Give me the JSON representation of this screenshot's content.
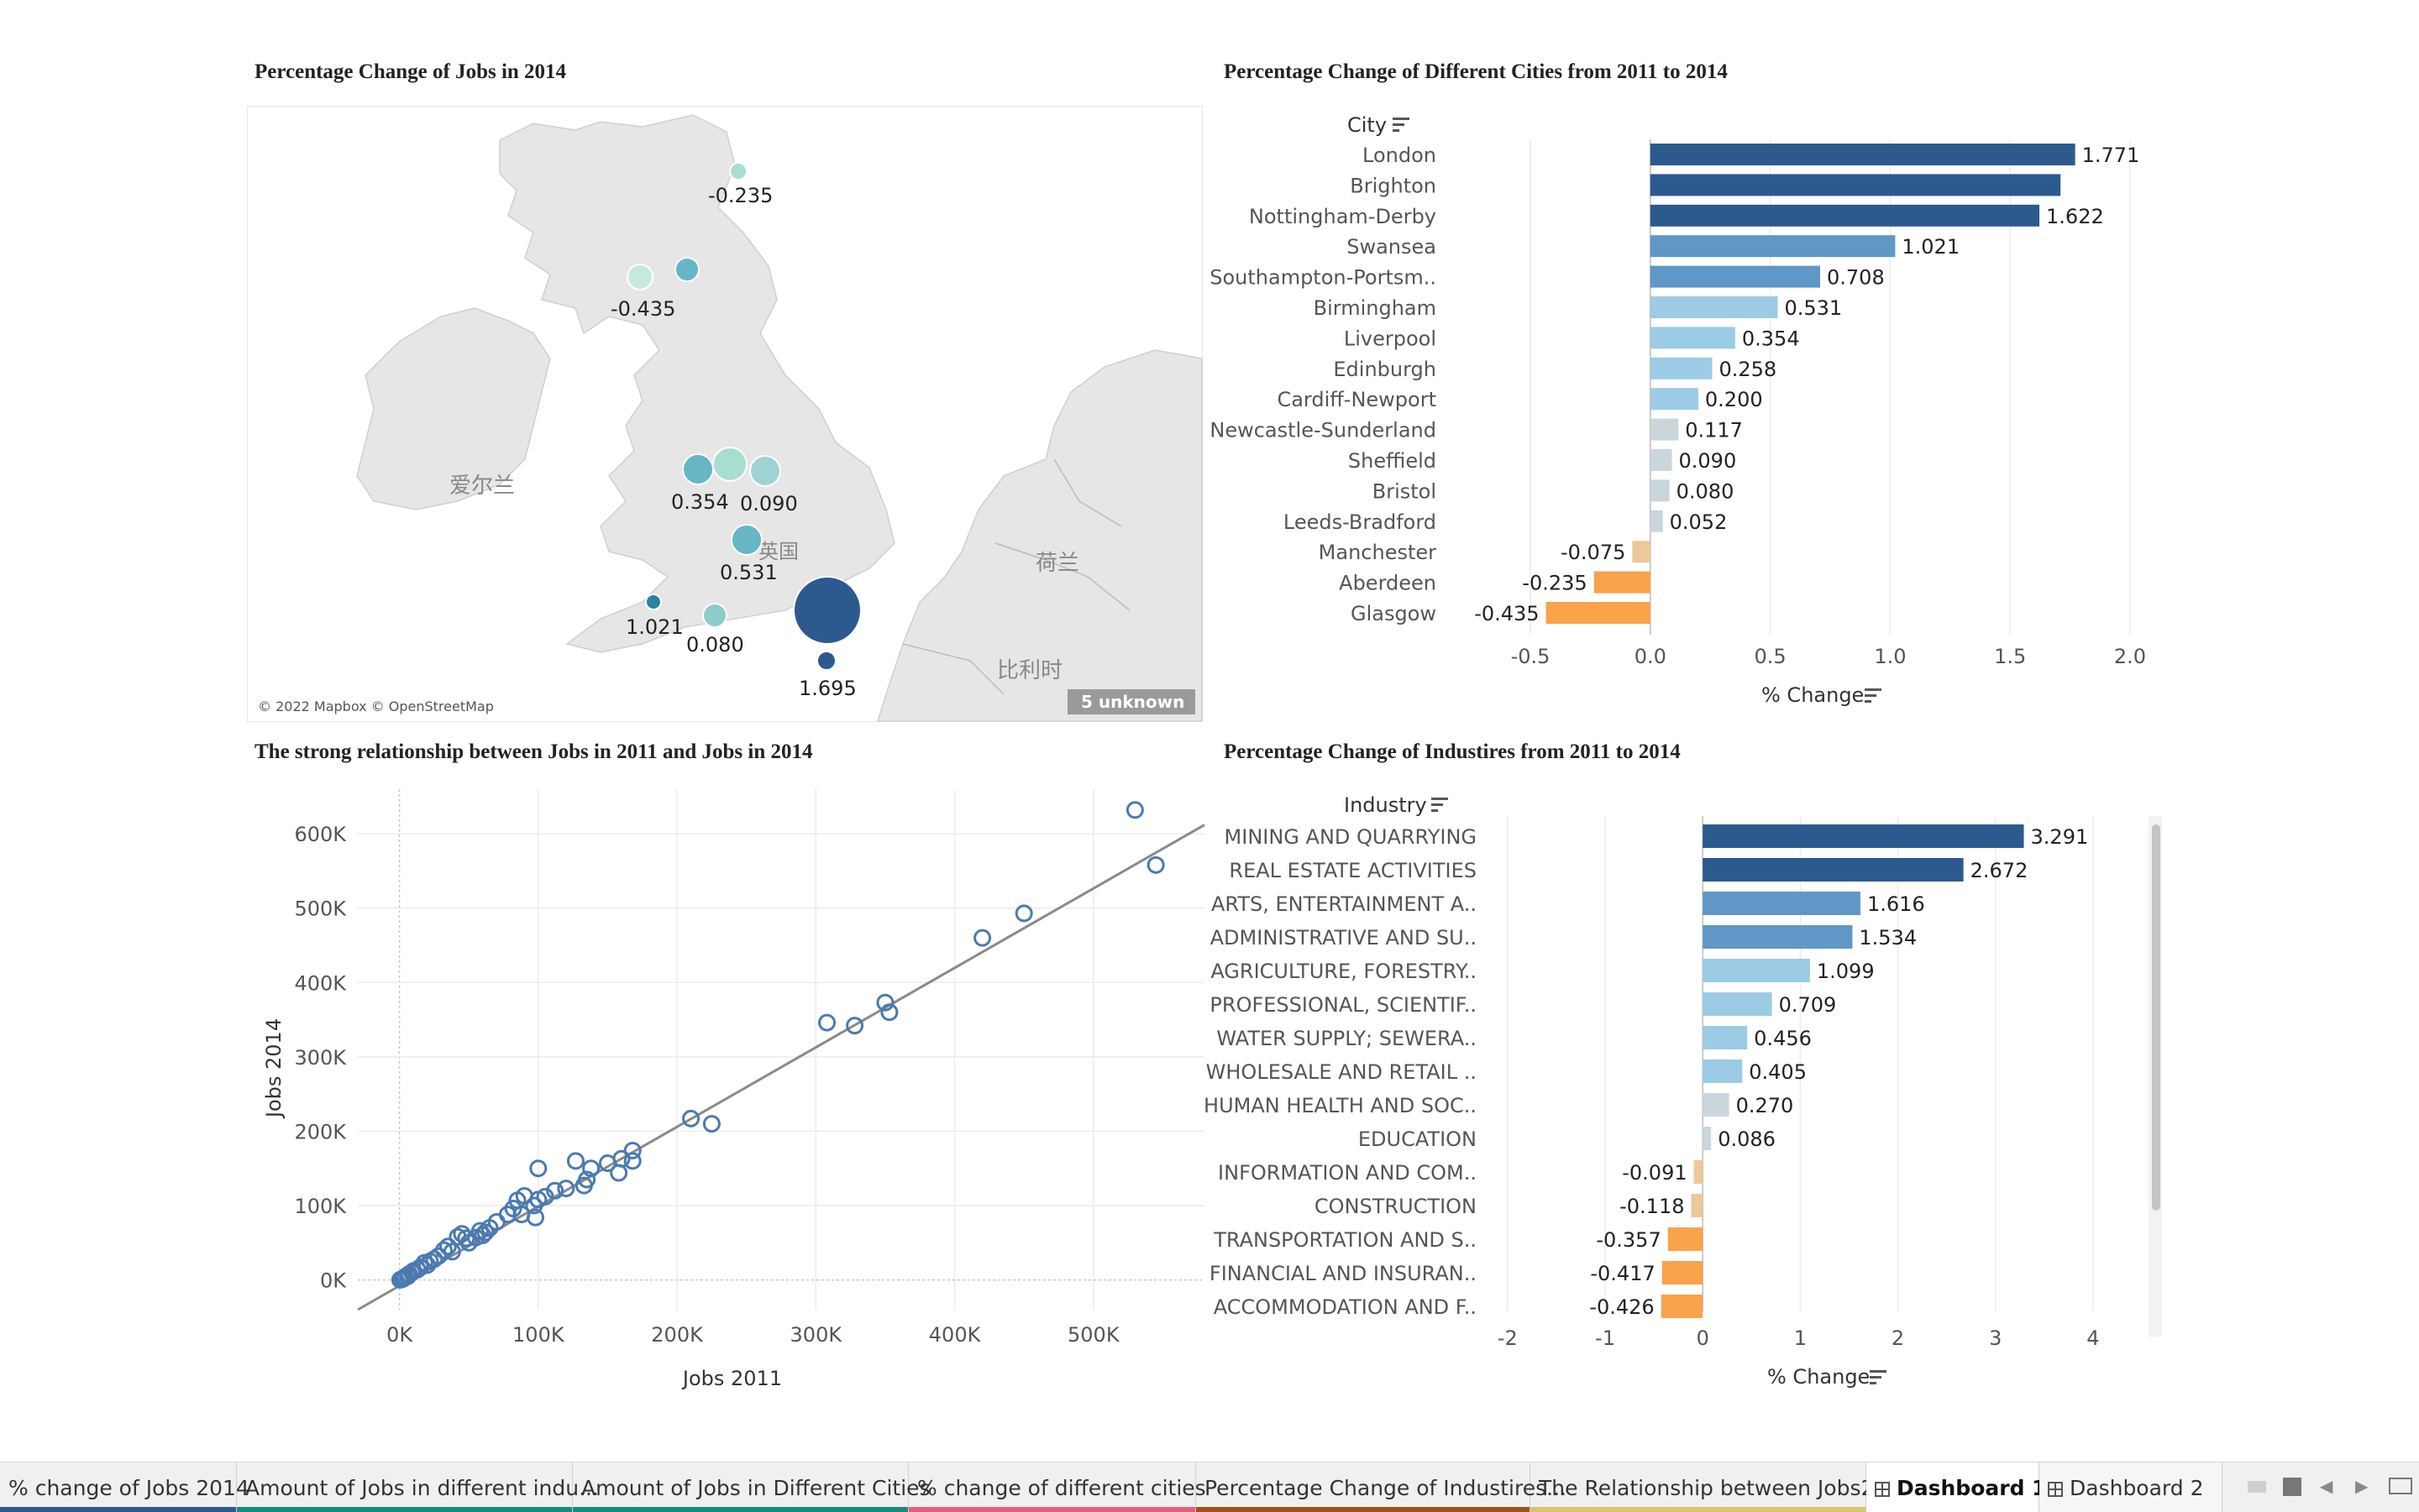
{
  "map_panel": {
    "title": "Percentage Change of Jobs in 2014",
    "attribution": "© 2022 Mapbox © OpenStreetMap",
    "unknown_badge": "5 unknown",
    "country_labels": {
      "ireland": "爱尔兰",
      "uk": "英国",
      "netherlands": "荷兰",
      "belgium": "比利时"
    },
    "marker_labels": [
      "-0.235",
      "-0.435",
      "0.354",
      "0.090",
      "0.531",
      "1.021",
      "0.080",
      "1.695"
    ],
    "colors": {
      "sea": "#ffffff",
      "land": "#e8e8e8",
      "low": "#a8ddd2",
      "mid": "#66b6c6",
      "high": "#2c5a8f"
    }
  },
  "city_panel": {
    "title": "Percentage Change of Different Cities from 2011 to 2014",
    "row_header": "City",
    "axis_label": "% Change",
    "chart_data": {
      "type": "bar",
      "orientation": "horizontal",
      "categories": [
        "London",
        "Brighton",
        "Nottingham-Derby",
        "Swansea",
        "Southampton-Portsm..",
        "Birmingham",
        "Liverpool",
        "Edinburgh",
        "Cardiff-Newport",
        "Newcastle-Sunderland",
        "Sheffield",
        "Bristol",
        "Leeds-Bradford",
        "Manchester",
        "Aberdeen",
        "Glasgow"
      ],
      "values": [
        1.771,
        1.71,
        1.622,
        1.021,
        0.708,
        0.531,
        0.354,
        0.258,
        0.2,
        0.117,
        0.09,
        0.08,
        0.052,
        -0.075,
        -0.235,
        -0.435
      ],
      "labels": [
        "1.771",
        "",
        "1.622",
        "1.021",
        "0.708",
        "0.531",
        "0.354",
        "0.258",
        "0.200",
        "0.117",
        "0.090",
        "0.080",
        "0.052",
        "-0.075",
        "-0.235",
        "-0.435"
      ],
      "xlim": [
        -0.5,
        2.0
      ],
      "ticks": [
        "-0.5",
        "0.0",
        "0.5",
        "1.0",
        "1.5",
        "2.0"
      ],
      "xlabel": "% Change",
      "grid": true
    }
  },
  "scatter_panel": {
    "title": "The strong relationship between Jobs in 2011 and Jobs in 2014",
    "chart_data": {
      "type": "scatter",
      "xlabel": "Jobs 2011",
      "ylabel": "Jobs 2014",
      "xlim": [
        -30000,
        580000
      ],
      "ylim": [
        -40000,
        660000
      ],
      "xticks": [
        0,
        100000,
        200000,
        300000,
        400000,
        500000
      ],
      "xtick_labels": [
        "0K",
        "100K",
        "200K",
        "300K",
        "400K",
        "500K"
      ],
      "yticks": [
        0,
        100000,
        200000,
        300000,
        400000,
        500000,
        600000
      ],
      "ytick_labels": [
        "0K",
        "100K",
        "200K",
        "300K",
        "400K",
        "500K",
        "600K"
      ],
      "trend_line": {
        "x": [
          -30000,
          580000
        ],
        "y": [
          -40000,
          612000
        ]
      },
      "points": [
        [
          530000,
          632000
        ],
        [
          545000,
          558000
        ],
        [
          450000,
          493000
        ],
        [
          420000,
          460000
        ],
        [
          350000,
          373000
        ],
        [
          353000,
          360000
        ],
        [
          308000,
          346000
        ],
        [
          328000,
          342000
        ],
        [
          210000,
          217000
        ],
        [
          225000,
          210000
        ],
        [
          100000,
          150000
        ],
        [
          127000,
          160000
        ],
        [
          160000,
          163000
        ],
        [
          168000,
          174000
        ],
        [
          168000,
          160000
        ],
        [
          150000,
          157000
        ],
        [
          138000,
          150000
        ],
        [
          135000,
          135000
        ],
        [
          133000,
          127000
        ],
        [
          158000,
          144000
        ],
        [
          120000,
          123000
        ],
        [
          112000,
          120000
        ],
        [
          105000,
          112000
        ],
        [
          100000,
          108000
        ],
        [
          97000,
          100000
        ],
        [
          90000,
          113000
        ],
        [
          85000,
          107000
        ],
        [
          82000,
          96000
        ],
        [
          78000,
          88000
        ],
        [
          88000,
          88000
        ],
        [
          98000,
          84000
        ],
        [
          65000,
          70000
        ],
        [
          58000,
          66000
        ],
        [
          60000,
          60000
        ],
        [
          48000,
          56000
        ],
        [
          45000,
          62000
        ],
        [
          42000,
          58000
        ],
        [
          50000,
          50000
        ],
        [
          35000,
          45000
        ],
        [
          32000,
          40000
        ],
        [
          38000,
          38000
        ],
        [
          28000,
          32000
        ],
        [
          25000,
          28000
        ],
        [
          22000,
          25000
        ],
        [
          20000,
          20000
        ],
        [
          18000,
          23000
        ],
        [
          15000,
          17000
        ],
        [
          13000,
          14000
        ],
        [
          10000,
          12000
        ],
        [
          9000,
          10000
        ],
        [
          7000,
          8000
        ],
        [
          6000,
          5000
        ],
        [
          4000,
          4000
        ],
        [
          3000,
          2000
        ],
        [
          2000,
          1000
        ],
        [
          1000,
          500
        ],
        [
          500,
          200
        ],
        [
          70000,
          78000
        ],
        [
          55000,
          57000
        ],
        [
          62000,
          64000
        ]
      ]
    }
  },
  "industry_panel": {
    "title": "Percentage Change of Industires from 2011 to 2014",
    "row_header": "Industry",
    "axis_label": "% Change",
    "chart_data": {
      "type": "bar",
      "orientation": "horizontal",
      "categories": [
        "MINING AND QUARRYING",
        "REAL ESTATE ACTIVITIES",
        "ARTS, ENTERTAINMENT A..",
        "ADMINISTRATIVE AND SU..",
        "AGRICULTURE, FORESTRY..",
        "PROFESSIONAL, SCIENTIF..",
        "WATER SUPPLY; SEWERA..",
        "WHOLESALE AND RETAIL ..",
        "HUMAN HEALTH AND SOC..",
        "EDUCATION",
        "INFORMATION AND COM..",
        "CONSTRUCTION",
        "TRANSPORTATION AND S..",
        "FINANCIAL AND INSURAN..",
        "ACCOMMODATION AND F.."
      ],
      "values": [
        3.291,
        2.672,
        1.616,
        1.534,
        1.099,
        0.709,
        0.456,
        0.405,
        0.27,
        0.086,
        -0.091,
        -0.118,
        -0.357,
        -0.417,
        -0.426
      ],
      "labels": [
        "3.291",
        "2.672",
        "1.616",
        "1.534",
        "1.099",
        "0.709",
        "0.456",
        "0.405",
        "0.270",
        "0.086",
        "-0.091",
        "-0.118",
        "-0.357",
        "-0.417",
        "-0.426"
      ],
      "xlim": [
        -2.3,
        4.5
      ],
      "ticks": [
        "-2",
        "-1",
        "0",
        "1",
        "2",
        "3",
        "4"
      ],
      "xlabel": "% Change",
      "grid": true
    }
  },
  "tabs": [
    {
      "label": "% change of Jobs 2014",
      "color": "#2c5a8f"
    },
    {
      "label": "Amount of Jobs in different indu...",
      "color": "#1a8a7a"
    },
    {
      "label": "Amount of Jobs in Different Cities",
      "color": "#1a8a7a"
    },
    {
      "label": "% change of different cities",
      "color": "#e0607a"
    },
    {
      "label": "Percentage Change of Industires...",
      "color": "#a0521a"
    },
    {
      "label": "The Relationship between Jobs2...",
      "color": "#d8c56a"
    },
    {
      "label": "Dashboard 1",
      "color": ""
    },
    {
      "label": "Dashboard 2",
      "color": ""
    }
  ],
  "palette": {
    "pos_dark": "#2c5a8f",
    "pos_mid": "#5f97c6",
    "pos_light": "#9ccbe5",
    "neutral": "#c9d6dc",
    "neg_light": "#ecc89a",
    "neg": "#f9a34a",
    "scatter": "#4a7ab0"
  }
}
